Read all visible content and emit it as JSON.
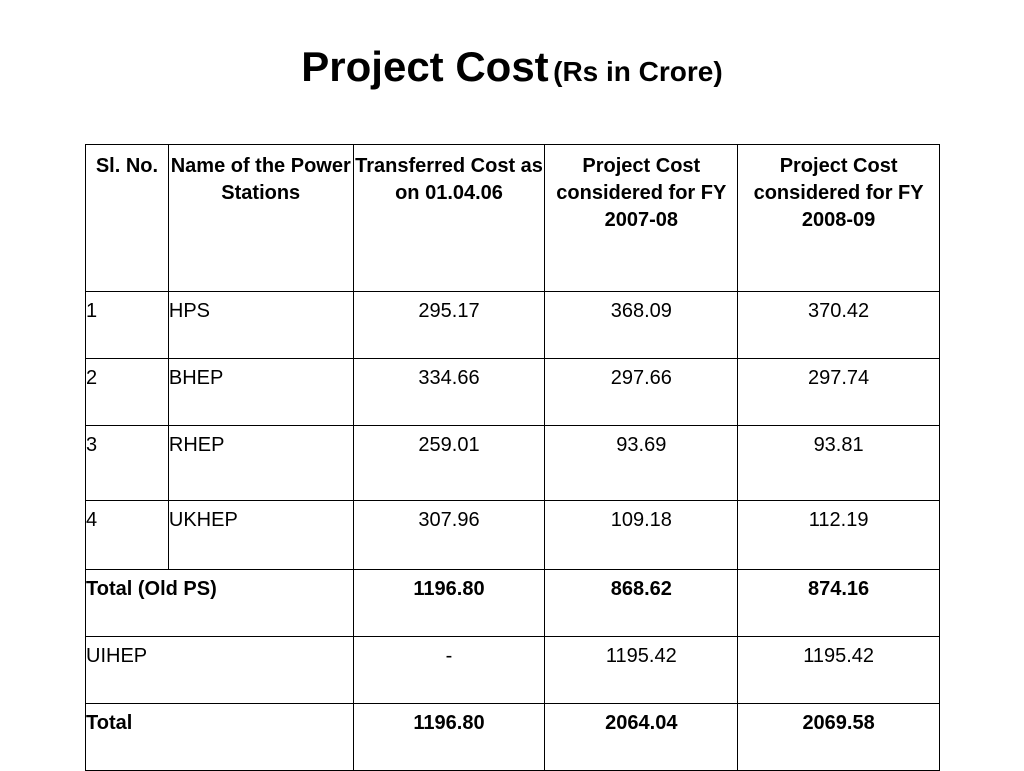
{
  "title": {
    "main": "Project Cost",
    "sub": "(Rs in Crore)"
  },
  "table": {
    "headers": [
      "Sl. No.",
      "Name of the Power Stations",
      "Transferred Cost as on 01.04.06",
      "Project Cost considered for FY 2007-08",
      "Project Cost considered for FY 2008-09"
    ],
    "rows": [
      {
        "sl": "1",
        "name": "HPS",
        "transferred": "295.17",
        "fy0708": "368.09",
        "fy0809": "370.42"
      },
      {
        "sl": "2",
        "name": "BHEP",
        "transferred": "334.66",
        "fy0708": "297.66",
        "fy0809": "297.74"
      },
      {
        "sl": "3",
        "name": "RHEP",
        "transferred": "259.01",
        "fy0708": "93.69",
        "fy0809": "93.81"
      },
      {
        "sl": "4",
        "name": "UKHEP",
        "transferred": "307.96",
        "fy0708": "109.18",
        "fy0809": "112.19"
      }
    ],
    "total_old": {
      "label": "Total (Old PS)",
      "transferred": "1196.80",
      "fy0708": "868.62",
      "fy0809": "874.16"
    },
    "uihep": {
      "label": "UIHEP",
      "transferred": "-",
      "fy0708": "1195.42",
      "fy0809": "1195.42"
    },
    "total": {
      "label": "Total",
      "transferred": "1196.80",
      "fy0708": "2064.04",
      "fy0809": "2069.58"
    }
  }
}
